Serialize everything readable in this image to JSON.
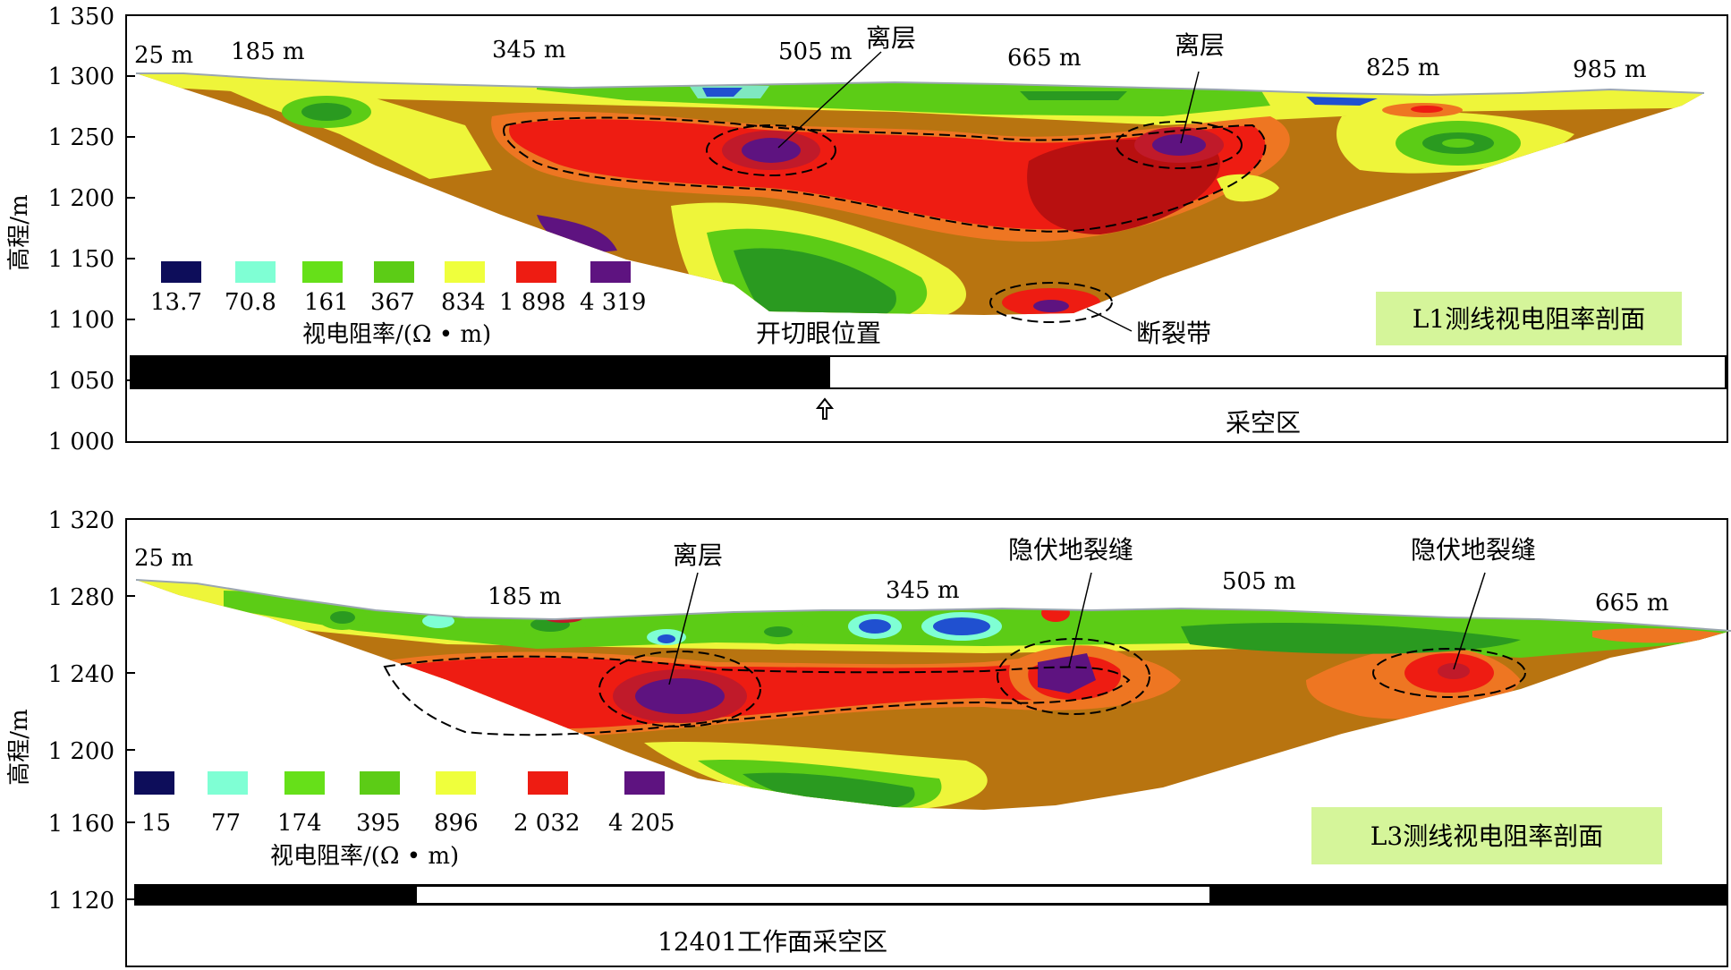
{
  "panels": [
    {
      "id": "L1",
      "y_axis_label": "高程/m",
      "y_ticks": [
        "1 350",
        "1 300",
        "1 250",
        "1 200",
        "1 150",
        "1 100",
        "1 050",
        "1 000"
      ],
      "distance_labels": [
        "25 m",
        "185 m",
        "345 m",
        "505 m",
        "665 m",
        "825 m",
        "985 m"
      ],
      "annotations": {
        "separation_1": "离层",
        "separation_2": "离层",
        "fault_zone": "断裂带",
        "cut_eye_position": "开切眼位置",
        "goaf": "采空区"
      },
      "legend": {
        "title": "视电阻率/(Ω • m)",
        "values": [
          "13.7",
          "70.8",
          "161",
          "367",
          "834",
          "1 898",
          "4 319"
        ],
        "colors": [
          "#0d0d5a",
          "#7fffd4",
          "#66e019",
          "#5ccc16",
          "#efff3c",
          "#ee1c12",
          "#5e1380"
        ]
      },
      "profile_title": "L1测线视电阻率剖面"
    },
    {
      "id": "L3",
      "y_axis_label": "高程/m",
      "y_ticks": [
        "1 320",
        "1 280",
        "1 240",
        "1 200",
        "1 160",
        "1 120"
      ],
      "distance_labels": [
        "25 m",
        "185 m",
        "345 m",
        "505 m",
        "665 m"
      ],
      "annotations": {
        "separation": "离层",
        "hidden_crack_1": "隐伏地裂缝",
        "hidden_crack_2": "隐伏地裂缝",
        "goaf": "12401工作面采空区"
      },
      "legend": {
        "title": "视电阻率/(Ω • m)",
        "values": [
          "15",
          "77",
          "174",
          "395",
          "896",
          "2 032",
          "4 205"
        ],
        "colors": [
          "#0d0d5a",
          "#7fffd4",
          "#66e019",
          "#5ccc16",
          "#efff3c",
          "#ee1c12",
          "#5e1380"
        ]
      },
      "profile_title": "L3测线视电阻率剖面"
    }
  ]
}
